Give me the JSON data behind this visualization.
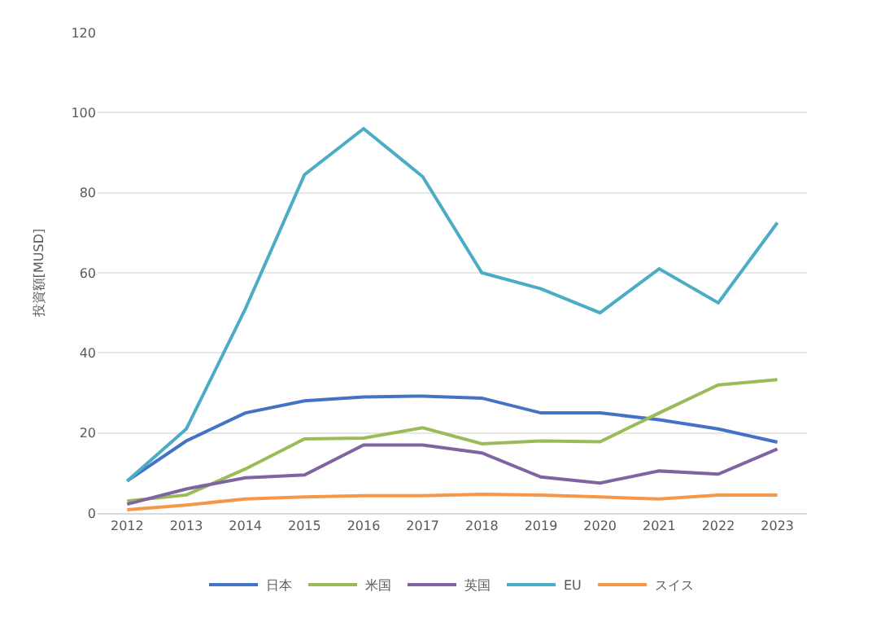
{
  "chart_data": {
    "type": "line",
    "ylabel": "投資額[MUSD]",
    "categories": [
      "2012",
      "2013",
      "2014",
      "2015",
      "2016",
      "2017",
      "2018",
      "2019",
      "2020",
      "2021",
      "2022",
      "2023"
    ],
    "series": [
      {
        "name": "日本",
        "color": "#4472c4",
        "values": [
          8,
          18,
          25,
          28,
          29,
          29.2,
          28.7,
          25,
          25,
          23.3,
          21,
          17.7
        ]
      },
      {
        "name": "米国",
        "color": "#9bbb59",
        "values": [
          3,
          4.5,
          11,
          18.5,
          18.7,
          21.3,
          17.3,
          18,
          17.8,
          25,
          32,
          33.3
        ]
      },
      {
        "name": "英国",
        "color": "#8064a2",
        "values": [
          2.2,
          6,
          8.8,
          9.5,
          17,
          17,
          15,
          9,
          7.5,
          10.5,
          9.7,
          16
        ]
      },
      {
        "name": "EU",
        "color": "#4bacc6",
        "values": [
          8,
          21,
          51,
          84.5,
          96,
          84,
          60,
          56,
          50,
          61,
          52.5,
          72.5
        ]
      },
      {
        "name": "スイス",
        "color": "#f79646",
        "values": [
          0.8,
          2,
          3.5,
          4,
          4.3,
          4.3,
          4.7,
          4.5,
          4,
          3.5,
          4.5,
          4.5
        ]
      }
    ],
    "ylim": [
      0,
      120
    ],
    "yticks": [
      0,
      20,
      40,
      60,
      80,
      100,
      120
    ],
    "grid": "y",
    "legend": "bottom",
    "marker": "none",
    "line_style": "solid"
  }
}
